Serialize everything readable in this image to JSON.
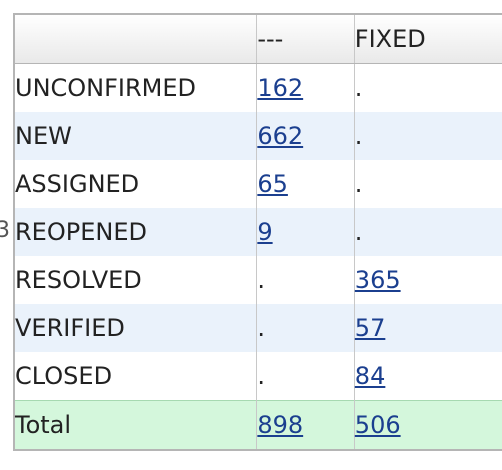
{
  "edge_glyph": "3",
  "columns": [
    "",
    "---",
    "FIXED"
  ],
  "rows": [
    {
      "label": "UNCONFIRMED",
      "unresolved": "162",
      "fixed": "."
    },
    {
      "label": "NEW",
      "unresolved": "662",
      "fixed": "."
    },
    {
      "label": "ASSIGNED",
      "unresolved": "65",
      "fixed": "."
    },
    {
      "label": "REOPENED",
      "unresolved": "9",
      "fixed": "."
    },
    {
      "label": "RESOLVED",
      "unresolved": ".",
      "fixed": "365"
    },
    {
      "label": "VERIFIED",
      "unresolved": ".",
      "fixed": "57"
    },
    {
      "label": "CLOSED",
      "unresolved": ".",
      "fixed": "84"
    }
  ],
  "total": {
    "label": "Total",
    "unresolved": "898",
    "fixed": "506"
  },
  "colors": {
    "link": "#1b3f8f",
    "row_alt": "#eaf2fb",
    "total_bg": "#d4f7dc"
  }
}
